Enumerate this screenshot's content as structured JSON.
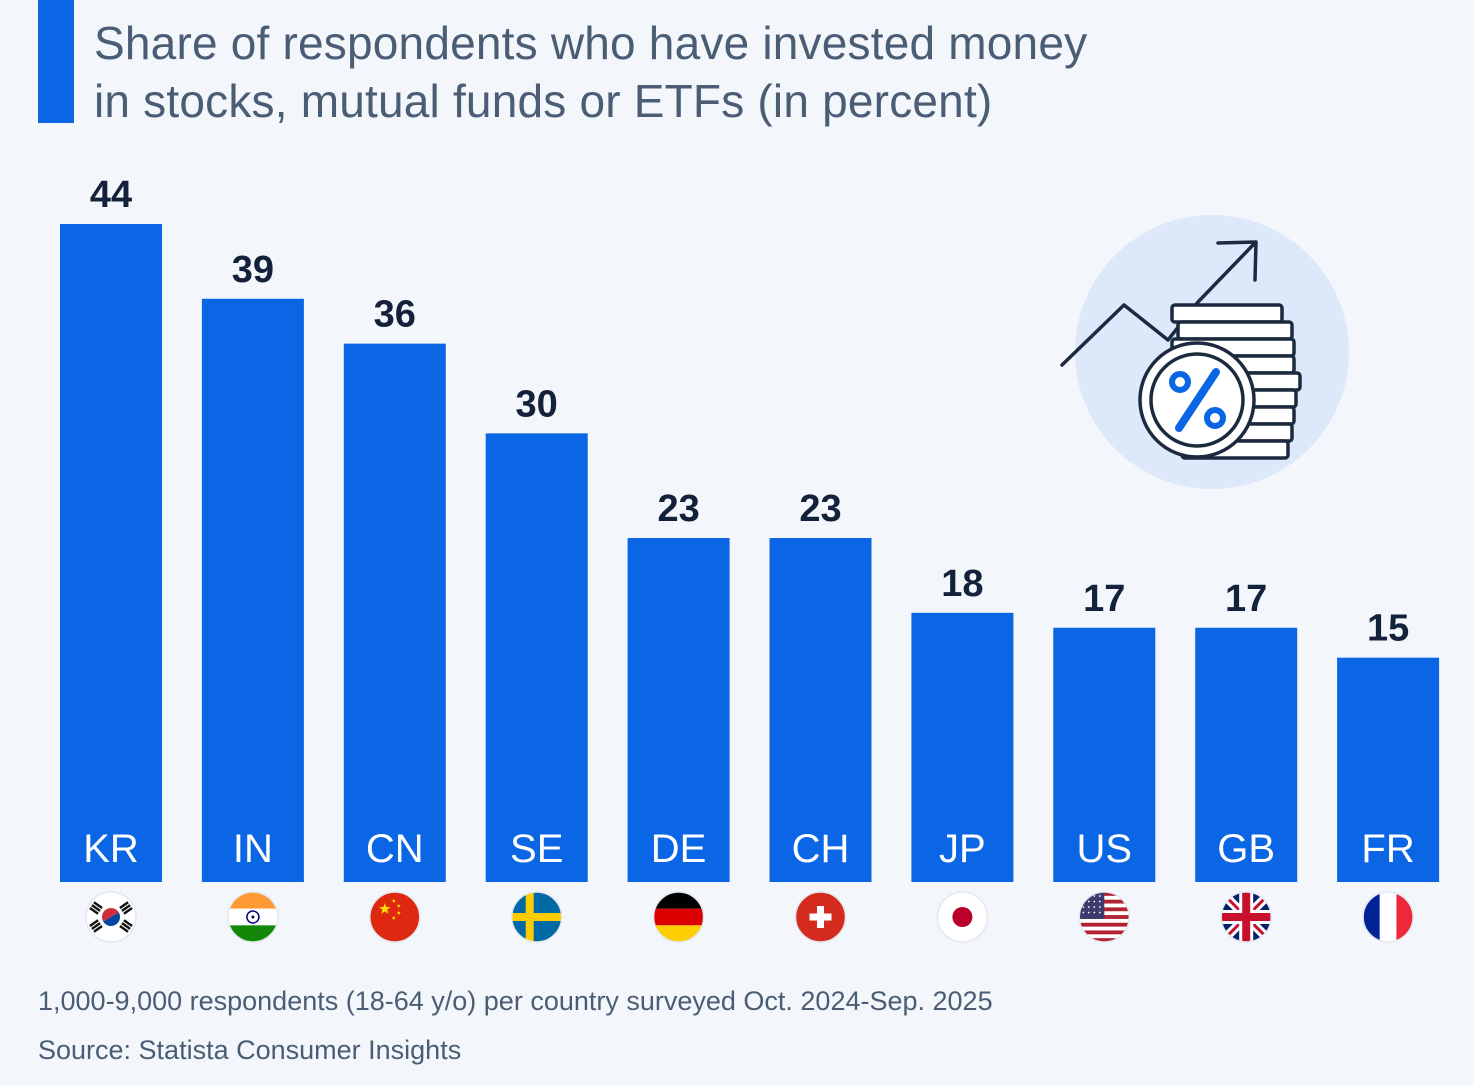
{
  "title_line1": "Share of respondents who have invested money",
  "title_line2": "in stocks, mutual funds or ETFs (in percent)",
  "footer": {
    "note": "1,000-9,000 respondents (18-64 y/o) per country surveyed Oct. 2024-Sep. 2025",
    "source": "Source: Statista Consumer Insights"
  },
  "colors": {
    "bar": "#0a66e4",
    "value_label": "#14213a",
    "bg": "#f3f6fa"
  },
  "chart_data": {
    "type": "bar",
    "title": "Share of respondents who have invested money in stocks, mutual funds or ETFs (in percent)",
    "xlabel": "",
    "ylabel": "",
    "ylim": [
      0,
      44
    ],
    "categories": [
      "KR",
      "IN",
      "CN",
      "SE",
      "DE",
      "CH",
      "JP",
      "US",
      "GB",
      "FR"
    ],
    "values": [
      44,
      39,
      36,
      30,
      23,
      23,
      18,
      17,
      17,
      15
    ],
    "flags": [
      "south-korea-flag-icon",
      "india-flag-icon",
      "china-flag-icon",
      "sweden-flag-icon",
      "germany-flag-icon",
      "switzerland-flag-icon",
      "japan-flag-icon",
      "usa-flag-icon",
      "uk-flag-icon",
      "france-flag-icon"
    ]
  },
  "illustration_icon": "investment-percent-coins-icon"
}
